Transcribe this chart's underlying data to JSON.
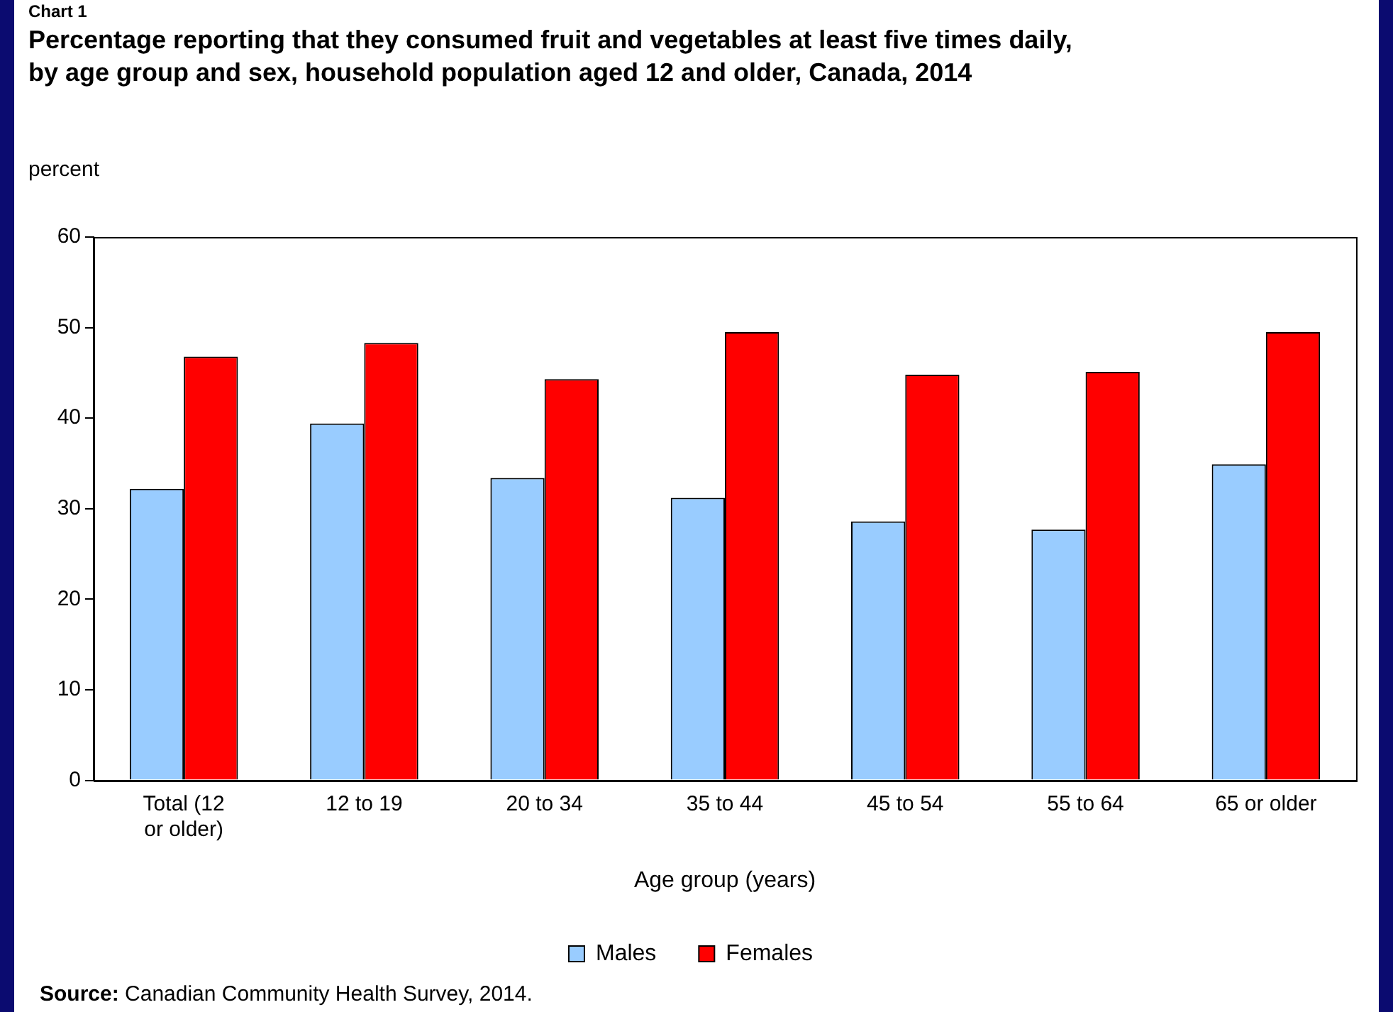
{
  "chart_data": {
    "type": "bar",
    "title": "Percentage reporting that they consumed fruit and vegetables at least five times daily, by age group and sex, household population aged 12 and older, Canada, 2014",
    "ylabel": "percent",
    "xlabel": "Age group (years)",
    "categories": [
      "Total (12 or older)",
      "12 to 19",
      "20 to 34",
      "35 to 44",
      "45 to 54",
      "55 to 64",
      "65 or older"
    ],
    "series": [
      {
        "name": "Males",
        "color": "#99ccff",
        "values": [
          32.2,
          39.4,
          33.4,
          31.2,
          28.6,
          27.7,
          34.9
        ]
      },
      {
        "name": "Females",
        "color": "#ff0000",
        "values": [
          46.8,
          48.3,
          44.3,
          49.5,
          44.8,
          45.1,
          49.5
        ]
      }
    ],
    "ylim": [
      0,
      60
    ],
    "yticks": [
      0,
      10,
      20,
      30,
      40,
      50,
      60
    ],
    "legend": "bottom",
    "annotations": [
      "Chart 1",
      "Source: Canadian Community Health Survey, 2014."
    ]
  }
}
